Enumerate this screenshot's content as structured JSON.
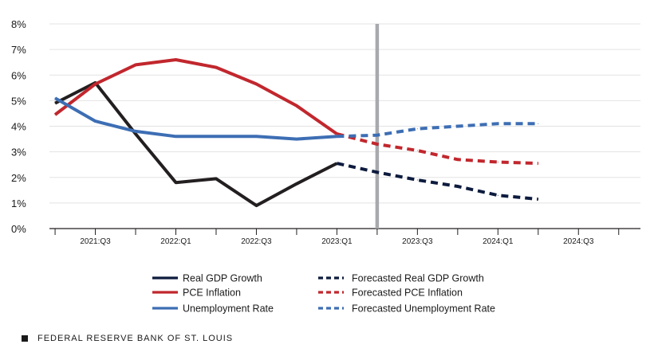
{
  "chart_data": {
    "type": "line",
    "title": "",
    "xlabel": "",
    "ylabel": "",
    "ylim": [
      0,
      8
    ],
    "y_ticks": [
      0,
      1,
      2,
      3,
      4,
      5,
      6,
      7,
      8
    ],
    "y_tick_labels": [
      "0%",
      "1%",
      "2%",
      "3%",
      "4%",
      "5%",
      "6%",
      "7%",
      "8%"
    ],
    "x_ticks": [
      0,
      1,
      2,
      3,
      4,
      5,
      6
    ],
    "x_tick_labels": [
      "2021:Q3",
      "2022:Q1",
      "2022:Q3",
      "2023:Q1",
      "2023:Q3",
      "2024:Q1",
      "2024:Q3"
    ],
    "x_range": [
      -0.57,
      6.77
    ],
    "forecast_divider_x": 3.5,
    "grid": "horizontal",
    "series": [
      {
        "name": "Real GDP Growth",
        "color": "#231f20",
        "style": "solid",
        "points": [
          [
            -0.5,
            4.9
          ],
          [
            0,
            5.7
          ],
          [
            0.5,
            3.7
          ],
          [
            1,
            1.8
          ],
          [
            1.5,
            1.95
          ],
          [
            2,
            0.9
          ],
          [
            2.5,
            1.75
          ],
          [
            3,
            2.55
          ]
        ]
      },
      {
        "name": "PCE Inflation",
        "color": "#c1272d",
        "style": "solid",
        "points": [
          [
            -0.5,
            4.45
          ],
          [
            0,
            5.65
          ],
          [
            0.5,
            6.4
          ],
          [
            1,
            6.6
          ],
          [
            1.5,
            6.3
          ],
          [
            2,
            5.65
          ],
          [
            2.5,
            4.8
          ],
          [
            3,
            3.7
          ]
        ]
      },
      {
        "name": "Unemployment Rate",
        "color": "#3d6eb4",
        "style": "solid",
        "points": [
          [
            -0.5,
            5.1
          ],
          [
            0,
            4.2
          ],
          [
            0.5,
            3.8
          ],
          [
            1,
            3.6
          ],
          [
            1.5,
            3.6
          ],
          [
            2,
            3.6
          ],
          [
            2.5,
            3.5
          ],
          [
            3,
            3.6
          ]
        ]
      },
      {
        "name": "Forecasted Real GDP Growth",
        "color": "#0d1b3e",
        "style": "dashed",
        "points": [
          [
            3,
            2.55
          ],
          [
            3.5,
            2.2
          ],
          [
            4,
            1.9
          ],
          [
            4.5,
            1.65
          ],
          [
            5,
            1.3
          ],
          [
            5.5,
            1.15
          ]
        ]
      },
      {
        "name": "Forecasted PCE Inflation",
        "color": "#c1272d",
        "style": "dashed",
        "points": [
          [
            3,
            3.7
          ],
          [
            3.5,
            3.3
          ],
          [
            4,
            3.05
          ],
          [
            4.5,
            2.7
          ],
          [
            5,
            2.6
          ],
          [
            5.5,
            2.55
          ]
        ]
      },
      {
        "name": "Forecasted Unemployment Rate",
        "color": "#3d6eb4",
        "style": "dashed",
        "points": [
          [
            3,
            3.6
          ],
          [
            3.5,
            3.65
          ],
          [
            4,
            3.9
          ],
          [
            4.5,
            4.0
          ],
          [
            5,
            4.1
          ],
          [
            5.5,
            4.1
          ]
        ]
      }
    ],
    "legend": {
      "placement": "bottom",
      "entries_left": [
        {
          "label": "Real GDP Growth",
          "color": "#0d1b3e",
          "style": "solid"
        },
        {
          "label": "PCE Inflation",
          "color": "#c1272d",
          "style": "solid"
        },
        {
          "label": "Unemployment Rate",
          "color": "#3d6eb4",
          "style": "solid"
        }
      ],
      "entries_right": [
        {
          "label": "Forecasted Real GDP Growth",
          "color": "#0d1b3e",
          "style": "dashed"
        },
        {
          "label": "Forecasted PCE Inflation",
          "color": "#c1272d",
          "style": "dashed"
        },
        {
          "label": "Forecasted Unemployment Rate",
          "color": "#3d6eb4",
          "style": "dashed"
        }
      ]
    },
    "divider_color": "#a7a9ac",
    "grid_color": "#e3e3e3"
  },
  "source": {
    "text": "FEDERAL RESERVE BANK OF ST. LOUIS"
  }
}
